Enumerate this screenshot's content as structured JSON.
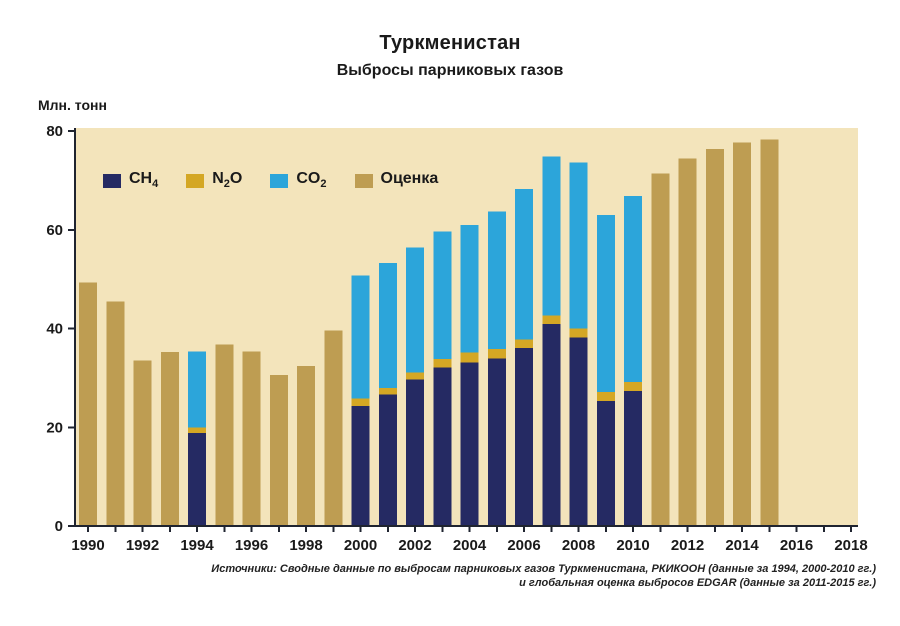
{
  "colors": {
    "ch4": "#252a63",
    "n2o": "#d4a724",
    "co2": "#2ca5da",
    "estimate": "#be9d52",
    "plot_bg": "#f3e4bb",
    "axis": "#1f2430",
    "text": "#1a1a1a"
  },
  "legend": {
    "items": [
      {
        "key": "ch4",
        "pre": "CH",
        "sub": "4",
        "post": ""
      },
      {
        "key": "n2o",
        "pre": "N",
        "sub": "2",
        "post": "O"
      },
      {
        "key": "co2",
        "pre": "CO",
        "sub": "2",
        "post": ""
      },
      {
        "key": "estimate",
        "pre": "Оценка",
        "sub": "",
        "post": ""
      }
    ]
  },
  "source": {
    "line1": "Источники: Сводные данные по выбросам парниковых газов Туркменистана, РКИКООН (данные за 1994, 2000-2010 гг.)",
    "line2": "и глобальная оценка выбросов EDGAR (данные за 2011-2015 гг.)"
  },
  "chart_data": {
    "type": "bar",
    "stacked": true,
    "title": "Туркменистан",
    "subtitle": "Выбросы парниковых газов",
    "ylabel": "Млн. тонн",
    "ylim": [
      0,
      80
    ],
    "yticks": [
      0,
      20,
      40,
      60,
      80
    ],
    "x_range": [
      1990,
      2018
    ],
    "xticks": [
      1990,
      1992,
      1994,
      1996,
      1998,
      2000,
      2002,
      2004,
      2006,
      2008,
      2010,
      2012,
      2014,
      2016,
      2018
    ],
    "categories": [
      1990,
      1991,
      1992,
      1993,
      1994,
      1995,
      1996,
      1997,
      1998,
      1999,
      2000,
      2001,
      2002,
      2003,
      2004,
      2005,
      2006,
      2007,
      2008,
      2009,
      2010,
      2011,
      2012,
      2013,
      2014,
      2015
    ],
    "legend_position": "top-left-inside",
    "grid": false,
    "series": [
      {
        "name": "CH4",
        "color_key": "ch4",
        "values": [
          0,
          0,
          0,
          0,
          18.8,
          0,
          0,
          0,
          0,
          0,
          24.3,
          26.6,
          29.7,
          32.1,
          33.1,
          33.9,
          36.1,
          40.9,
          38.2,
          25.3,
          27.3,
          0,
          0,
          0,
          0,
          0
        ]
      },
      {
        "name": "N2O",
        "color_key": "n2o",
        "values": [
          0,
          0,
          0,
          0,
          1.2,
          0,
          0,
          0,
          0,
          0,
          1.5,
          1.4,
          1.4,
          1.7,
          2.0,
          1.9,
          1.7,
          1.7,
          1.8,
          1.8,
          1.9,
          0,
          0,
          0,
          0,
          0
        ]
      },
      {
        "name": "CO2",
        "color_key": "co2",
        "values": [
          0,
          0,
          0,
          0,
          15.3,
          0,
          0,
          0,
          0,
          0,
          24.9,
          25.3,
          25.3,
          25.8,
          25.9,
          27.9,
          30.5,
          32.2,
          33.6,
          35.9,
          37.6,
          0,
          0,
          0,
          0,
          0
        ]
      },
      {
        "name": "Оценка",
        "color_key": "estimate",
        "values": [
          49.3,
          45.5,
          33.5,
          35.2,
          0,
          36.8,
          35.3,
          30.6,
          32.4,
          39.6,
          0,
          0,
          0,
          0,
          0,
          0,
          0,
          0,
          0,
          0,
          0,
          71.4,
          74.4,
          76.4,
          77.7,
          78.3
        ]
      }
    ]
  }
}
